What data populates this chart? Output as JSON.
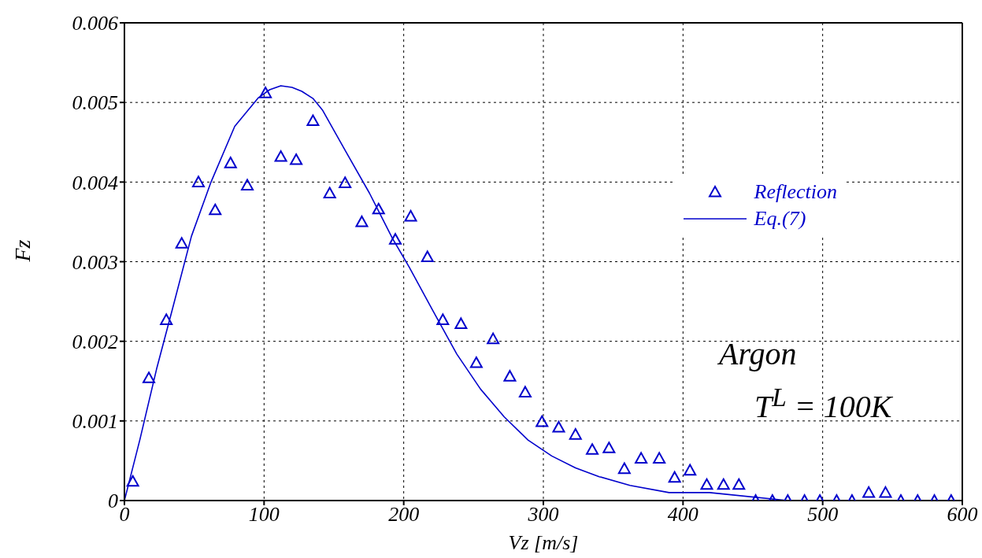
{
  "chart_data": {
    "type": "scatter",
    "xlabel": "Vz [m/s]",
    "ylabel": "Fz",
    "xlim": [
      0,
      600
    ],
    "xticks": [
      0,
      100,
      200,
      300,
      400,
      500,
      600
    ],
    "ylim": [
      0,
      0.006
    ],
    "yticks": [
      0,
      0.001,
      0.002,
      0.003,
      0.004,
      0.005,
      0.006
    ],
    "grid": true,
    "legend": "top right",
    "annotations": [
      "Argon",
      "T$^{L}$ = 100K"
    ],
    "series": [
      {
        "name": "Reflection",
        "marker": "triangle",
        "color": "#0000cc",
        "x": [
          6,
          17.5,
          30,
          41,
          53,
          65,
          76,
          88,
          101,
          112,
          123,
          135,
          147,
          158,
          170,
          182,
          194,
          205,
          217,
          228,
          241,
          252,
          264,
          276,
          287,
          299,
          311,
          323,
          335,
          347,
          358,
          370,
          383,
          394,
          405,
          417,
          429,
          440,
          452,
          464,
          475,
          487,
          498,
          510,
          521,
          533,
          545,
          556,
          568,
          580,
          592
        ],
        "values": [
          0.00024,
          0.00154,
          0.00227,
          0.00323,
          0.004,
          0.00365,
          0.00424,
          0.00396,
          0.00512,
          0.00432,
          0.00428,
          0.00477,
          0.00386,
          0.00399,
          0.0035,
          0.00366,
          0.00328,
          0.00357,
          0.00306,
          0.00227,
          0.00222,
          0.00173,
          0.00203,
          0.00156,
          0.00136,
          0.00099,
          0.00092,
          0.00083,
          0.00064,
          0.00066,
          0.0004,
          0.00053,
          0.00053,
          0.00029,
          0.00038,
          0.0002,
          0.0002,
          0.0002,
          0,
          0,
          0,
          0,
          0,
          0,
          0,
          0.0001,
          0.0001,
          0,
          0,
          0,
          0
        ]
      },
      {
        "name": "Eq.(7)",
        "type": "line",
        "marker": "none",
        "line_style": "solid",
        "color": "#0000cc",
        "x": [
          0,
          11,
          23,
          34,
          48,
          62,
          79,
          96,
          104,
          112,
          120,
          127,
          135,
          142,
          158,
          175.5,
          192,
          204,
          221,
          238,
          255,
          272,
          289,
          306,
          323,
          340,
          362,
          390,
          419,
          475,
          532,
          600
        ],
        "values": [
          0,
          0.00076,
          0.00165,
          0.00238,
          0.00332,
          0.004,
          0.0047,
          0.00506,
          0.00516,
          0.00521,
          0.00519,
          0.00514,
          0.00505,
          0.0049,
          0.0044,
          0.00386,
          0.00329,
          0.00293,
          0.00238,
          0.00184,
          0.0014,
          0.00105,
          0.00076,
          0.00056,
          0.00041,
          0.0003,
          0.00019,
          0.0001,
          0.0001,
          0,
          0,
          0
        ]
      }
    ]
  }
}
